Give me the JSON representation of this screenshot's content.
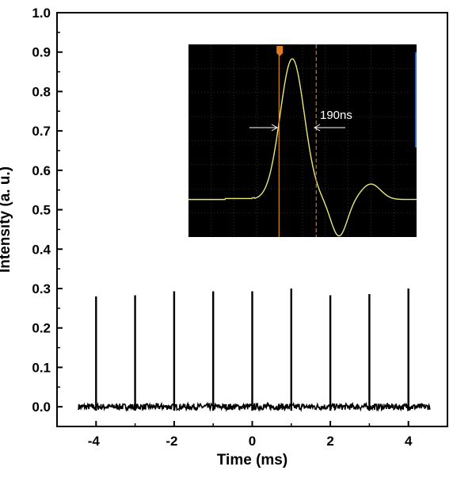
{
  "chart_data": {
    "type": "line",
    "xlabel": "Time (ms)",
    "ylabel": "Intensity (a. u.)",
    "xlim": [
      -5,
      5
    ],
    "ylim": [
      -0.05,
      1.0
    ],
    "x_ticks": [
      "-4",
      "-2",
      "0",
      "2",
      "4"
    ],
    "y_ticks": [
      "0.0",
      "0.1",
      "0.2",
      "0.3",
      "0.4",
      "0.5",
      "0.6",
      "0.7",
      "0.8",
      "0.9",
      "1.0"
    ],
    "x_range": [
      -4.45,
      4.55
    ],
    "baseline": 0.0,
    "noise_amplitude": 0.008,
    "series": [
      {
        "x": [
          -4,
          -3,
          -2,
          -1,
          0,
          1,
          2,
          3,
          4
        ],
        "y": [
          0.28,
          0.283,
          0.293,
          0.293,
          0.293,
          0.3,
          0.283,
          0.286,
          0.3
        ]
      }
    ],
    "inset": {
      "type": "oscilloscope-trace",
      "annotation": "190ns",
      "trace_color": "#e8e87a",
      "background": "#000000",
      "pulse_width": 190
    },
    "colors": {
      "series": "#000000",
      "inset_trace": "#e8e87a",
      "inset_cursor_solid": "#d48a2a",
      "inset_cursor_dashed": "#d46a2a",
      "inset_marker": "#e07a20",
      "inset_edge": "#2a6acc"
    }
  }
}
